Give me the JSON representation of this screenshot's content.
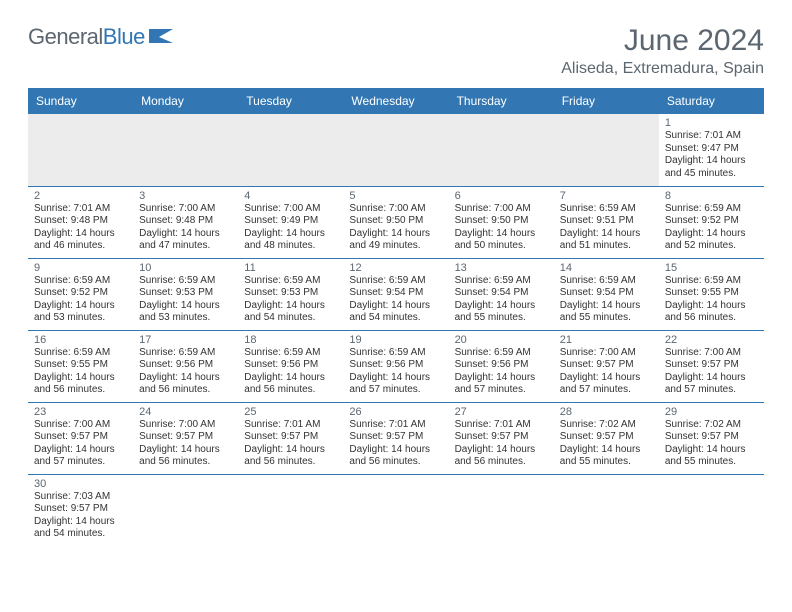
{
  "brand": {
    "name_a": "General",
    "name_b": "Blue"
  },
  "header": {
    "title": "June 2024",
    "location": "Aliseda, Extremadura, Spain"
  },
  "colors": {
    "accent": "#3277b3",
    "header_text": "#5c6670",
    "body_text": "#333333",
    "gray_bg": "#ececec",
    "white": "#ffffff"
  },
  "typography": {
    "title_fontsize": 30,
    "location_fontsize": 16,
    "weekday_fontsize": 12,
    "daynum_fontsize": 11,
    "body_fontsize": 10
  },
  "weekdays": [
    "Sunday",
    "Monday",
    "Tuesday",
    "Wednesday",
    "Thursday",
    "Friday",
    "Saturday"
  ],
  "calendar": {
    "type": "table",
    "columns": 7,
    "first_day_col": 6,
    "days": [
      {
        "n": 1,
        "sunrise": "7:01 AM",
        "sunset": "9:47 PM",
        "daylight": "14 hours and 45 minutes."
      },
      {
        "n": 2,
        "sunrise": "7:01 AM",
        "sunset": "9:48 PM",
        "daylight": "14 hours and 46 minutes."
      },
      {
        "n": 3,
        "sunrise": "7:00 AM",
        "sunset": "9:48 PM",
        "daylight": "14 hours and 47 minutes."
      },
      {
        "n": 4,
        "sunrise": "7:00 AM",
        "sunset": "9:49 PM",
        "daylight": "14 hours and 48 minutes."
      },
      {
        "n": 5,
        "sunrise": "7:00 AM",
        "sunset": "9:50 PM",
        "daylight": "14 hours and 49 minutes."
      },
      {
        "n": 6,
        "sunrise": "7:00 AM",
        "sunset": "9:50 PM",
        "daylight": "14 hours and 50 minutes."
      },
      {
        "n": 7,
        "sunrise": "6:59 AM",
        "sunset": "9:51 PM",
        "daylight": "14 hours and 51 minutes."
      },
      {
        "n": 8,
        "sunrise": "6:59 AM",
        "sunset": "9:52 PM",
        "daylight": "14 hours and 52 minutes."
      },
      {
        "n": 9,
        "sunrise": "6:59 AM",
        "sunset": "9:52 PM",
        "daylight": "14 hours and 53 minutes."
      },
      {
        "n": 10,
        "sunrise": "6:59 AM",
        "sunset": "9:53 PM",
        "daylight": "14 hours and 53 minutes."
      },
      {
        "n": 11,
        "sunrise": "6:59 AM",
        "sunset": "9:53 PM",
        "daylight": "14 hours and 54 minutes."
      },
      {
        "n": 12,
        "sunrise": "6:59 AM",
        "sunset": "9:54 PM",
        "daylight": "14 hours and 54 minutes."
      },
      {
        "n": 13,
        "sunrise": "6:59 AM",
        "sunset": "9:54 PM",
        "daylight": "14 hours and 55 minutes."
      },
      {
        "n": 14,
        "sunrise": "6:59 AM",
        "sunset": "9:54 PM",
        "daylight": "14 hours and 55 minutes."
      },
      {
        "n": 15,
        "sunrise": "6:59 AM",
        "sunset": "9:55 PM",
        "daylight": "14 hours and 56 minutes."
      },
      {
        "n": 16,
        "sunrise": "6:59 AM",
        "sunset": "9:55 PM",
        "daylight": "14 hours and 56 minutes."
      },
      {
        "n": 17,
        "sunrise": "6:59 AM",
        "sunset": "9:56 PM",
        "daylight": "14 hours and 56 minutes."
      },
      {
        "n": 18,
        "sunrise": "6:59 AM",
        "sunset": "9:56 PM",
        "daylight": "14 hours and 56 minutes."
      },
      {
        "n": 19,
        "sunrise": "6:59 AM",
        "sunset": "9:56 PM",
        "daylight": "14 hours and 57 minutes."
      },
      {
        "n": 20,
        "sunrise": "6:59 AM",
        "sunset": "9:56 PM",
        "daylight": "14 hours and 57 minutes."
      },
      {
        "n": 21,
        "sunrise": "7:00 AM",
        "sunset": "9:57 PM",
        "daylight": "14 hours and 57 minutes."
      },
      {
        "n": 22,
        "sunrise": "7:00 AM",
        "sunset": "9:57 PM",
        "daylight": "14 hours and 57 minutes."
      },
      {
        "n": 23,
        "sunrise": "7:00 AM",
        "sunset": "9:57 PM",
        "daylight": "14 hours and 57 minutes."
      },
      {
        "n": 24,
        "sunrise": "7:00 AM",
        "sunset": "9:57 PM",
        "daylight": "14 hours and 56 minutes."
      },
      {
        "n": 25,
        "sunrise": "7:01 AM",
        "sunset": "9:57 PM",
        "daylight": "14 hours and 56 minutes."
      },
      {
        "n": 26,
        "sunrise": "7:01 AM",
        "sunset": "9:57 PM",
        "daylight": "14 hours and 56 minutes."
      },
      {
        "n": 27,
        "sunrise": "7:01 AM",
        "sunset": "9:57 PM",
        "daylight": "14 hours and 56 minutes."
      },
      {
        "n": 28,
        "sunrise": "7:02 AM",
        "sunset": "9:57 PM",
        "daylight": "14 hours and 55 minutes."
      },
      {
        "n": 29,
        "sunrise": "7:02 AM",
        "sunset": "9:57 PM",
        "daylight": "14 hours and 55 minutes."
      },
      {
        "n": 30,
        "sunrise": "7:03 AM",
        "sunset": "9:57 PM",
        "daylight": "14 hours and 54 minutes."
      }
    ],
    "labels": {
      "sunrise_prefix": "Sunrise: ",
      "sunset_prefix": "Sunset: ",
      "daylight_prefix": "Daylight: "
    }
  }
}
